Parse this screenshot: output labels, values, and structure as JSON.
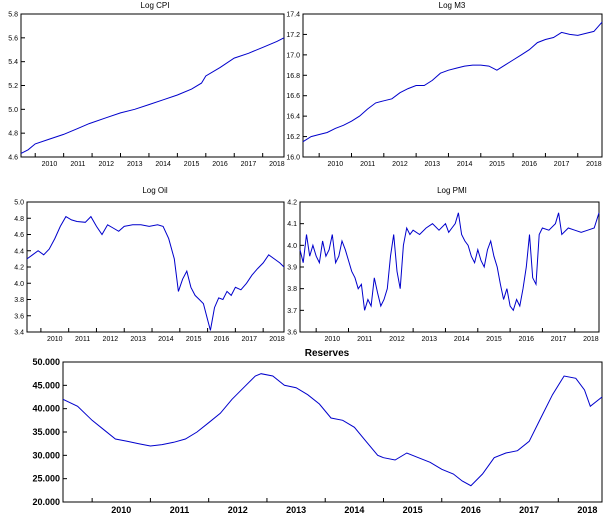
{
  "chart_data": [
    {
      "type": "line",
      "title": "Log CPI",
      "xlabel": "",
      "ylabel": "",
      "xlim": [
        2009.5,
        2018.75
      ],
      "ylim": [
        4.6,
        5.8
      ],
      "xticks": [
        "2010",
        "2011",
        "2012",
        "2013",
        "2014",
        "2015",
        "2016",
        "2017",
        "2018"
      ],
      "yticks": [
        "4.6",
        "4.8",
        "5.0",
        "5.2",
        "5.4",
        "5.6",
        "5.8"
      ],
      "ytick_values": [
        4.6,
        4.8,
        5.0,
        5.2,
        5.4,
        5.6,
        5.8
      ],
      "series": [
        {
          "x": [
            2009.5,
            2009.75,
            2010.0,
            2010.5,
            2011.0,
            2011.5,
            2011.9,
            2012.5,
            2013.0,
            2013.5,
            2014.0,
            2014.5,
            2015.0,
            2015.5,
            2015.85,
            2016.0,
            2016.5,
            2017.0,
            2017.5,
            2018.0,
            2018.5,
            2018.75
          ],
          "y": [
            4.63,
            4.66,
            4.71,
            4.75,
            4.79,
            4.84,
            4.88,
            4.93,
            4.97,
            5.0,
            5.04,
            5.08,
            5.12,
            5.17,
            5.22,
            5.28,
            5.35,
            5.43,
            5.47,
            5.52,
            5.57,
            5.6
          ]
        }
      ]
    },
    {
      "type": "line",
      "title": "Log M3",
      "xlabel": "",
      "ylabel": "",
      "xlim": [
        2009.5,
        2018.75
      ],
      "ylim": [
        16.0,
        17.4
      ],
      "xticks": [
        "2010",
        "2011",
        "2012",
        "2013",
        "2014",
        "2015",
        "2016",
        "2017",
        "2018"
      ],
      "yticks": [
        "16.0",
        "16.2",
        "16.4",
        "16.6",
        "16.8",
        "17.0",
        "17.2",
        "17.4"
      ],
      "ytick_values": [
        16.0,
        16.2,
        16.4,
        16.6,
        16.8,
        17.0,
        17.2,
        17.4
      ],
      "series": [
        {
          "x": [
            2009.5,
            2009.75,
            2010.0,
            2010.25,
            2010.5,
            2010.75,
            2011.0,
            2011.25,
            2011.5,
            2011.75,
            2012.0,
            2012.25,
            2012.5,
            2012.75,
            2013.0,
            2013.25,
            2013.5,
            2013.75,
            2014.0,
            2014.25,
            2014.5,
            2014.75,
            2015.0,
            2015.25,
            2015.5,
            2015.75,
            2016.0,
            2016.25,
            2016.5,
            2016.75,
            2017.0,
            2017.25,
            2017.5,
            2017.75,
            2018.0,
            2018.25,
            2018.5,
            2018.75
          ],
          "y": [
            16.15,
            16.2,
            16.22,
            16.24,
            16.28,
            16.31,
            16.35,
            16.4,
            16.47,
            16.53,
            16.55,
            16.57,
            16.63,
            16.67,
            16.7,
            16.7,
            16.75,
            16.82,
            16.85,
            16.87,
            16.89,
            16.9,
            16.9,
            16.89,
            16.85,
            16.9,
            16.95,
            17.0,
            17.05,
            17.12,
            17.15,
            17.17,
            17.22,
            17.2,
            17.19,
            17.21,
            17.23,
            17.32
          ]
        }
      ]
    },
    {
      "type": "line",
      "title": "Log Oil",
      "xlabel": "",
      "ylabel": "",
      "xlim": [
        2009.5,
        2018.75
      ],
      "ylim": [
        3.4,
        5.0
      ],
      "xticks": [
        "2010",
        "2011",
        "2012",
        "2013",
        "2014",
        "2015",
        "2016",
        "2017",
        "2018"
      ],
      "yticks": [
        "3.4",
        "3.6",
        "3.8",
        "4.0",
        "4.2",
        "4.4",
        "4.6",
        "4.8",
        "5.0"
      ],
      "ytick_values": [
        3.4,
        3.6,
        3.8,
        4.0,
        4.2,
        4.4,
        4.6,
        4.8,
        5.0
      ],
      "series": [
        {
          "x": [
            2009.5,
            2009.7,
            2009.9,
            2010.1,
            2010.3,
            2010.5,
            2010.7,
            2010.9,
            2011.1,
            2011.3,
            2011.6,
            2011.8,
            2012.0,
            2012.2,
            2012.4,
            2012.6,
            2012.8,
            2013.0,
            2013.3,
            2013.6,
            2013.9,
            2014.2,
            2014.4,
            2014.6,
            2014.8,
            2014.95,
            2015.1,
            2015.25,
            2015.4,
            2015.55,
            2015.7,
            2015.85,
            2016.0,
            2016.1,
            2016.25,
            2016.4,
            2016.55,
            2016.7,
            2016.85,
            2017.0,
            2017.2,
            2017.4,
            2017.6,
            2017.8,
            2018.0,
            2018.2,
            2018.4,
            2018.6,
            2018.75
          ],
          "y": [
            4.3,
            4.35,
            4.4,
            4.35,
            4.42,
            4.55,
            4.7,
            4.82,
            4.78,
            4.76,
            4.75,
            4.82,
            4.7,
            4.6,
            4.72,
            4.68,
            4.64,
            4.7,
            4.72,
            4.72,
            4.7,
            4.72,
            4.7,
            4.55,
            4.3,
            3.9,
            4.05,
            4.15,
            3.95,
            3.85,
            3.8,
            3.75,
            3.55,
            3.42,
            3.7,
            3.82,
            3.8,
            3.9,
            3.85,
            3.95,
            3.92,
            4.0,
            4.1,
            4.18,
            4.25,
            4.35,
            4.3,
            4.25,
            4.2
          ]
        }
      ]
    },
    {
      "type": "line",
      "title": "Log PMI",
      "xlabel": "",
      "ylabel": "",
      "xlim": [
        2009.5,
        2018.75
      ],
      "ylim": [
        3.6,
        4.2
      ],
      "xticks": [
        "2010",
        "2011",
        "2012",
        "2013",
        "2014",
        "2015",
        "2016",
        "2017",
        "2018"
      ],
      "yticks": [
        "3.6",
        "3.7",
        "3.8",
        "3.9",
        "4.0",
        "4.1",
        "4.2"
      ],
      "ytick_values": [
        3.6,
        3.7,
        3.8,
        3.9,
        4.0,
        4.1,
        4.2
      ],
      "series": [
        {
          "x": [
            2009.5,
            2009.6,
            2009.7,
            2009.8,
            2009.9,
            2010.0,
            2010.1,
            2010.2,
            2010.3,
            2010.4,
            2010.5,
            2010.6,
            2010.7,
            2010.8,
            2010.9,
            2011.0,
            2011.1,
            2011.2,
            2011.3,
            2011.4,
            2011.5,
            2011.6,
            2011.7,
            2011.8,
            2011.9,
            2012.0,
            2012.1,
            2012.2,
            2012.3,
            2012.4,
            2012.5,
            2012.6,
            2012.7,
            2012.8,
            2012.9,
            2013.0,
            2013.2,
            2013.4,
            2013.6,
            2013.8,
            2014.0,
            2014.1,
            2014.2,
            2014.3,
            2014.4,
            2014.5,
            2014.6,
            2014.7,
            2014.8,
            2014.9,
            2015.0,
            2015.1,
            2015.2,
            2015.3,
            2015.4,
            2015.5,
            2015.6,
            2015.7,
            2015.8,
            2015.9,
            2016.0,
            2016.1,
            2016.2,
            2016.3,
            2016.4,
            2016.5,
            2016.6,
            2016.7,
            2016.8,
            2016.9,
            2017.0,
            2017.2,
            2017.4,
            2017.5,
            2017.6,
            2017.8,
            2018.0,
            2018.2,
            2018.4,
            2018.6,
            2018.75
          ],
          "y": [
            3.98,
            3.92,
            4.05,
            3.95,
            4.0,
            3.95,
            3.92,
            4.02,
            3.95,
            3.98,
            4.05,
            3.92,
            3.95,
            4.02,
            3.98,
            3.93,
            3.88,
            3.85,
            3.8,
            3.82,
            3.7,
            3.75,
            3.72,
            3.85,
            3.78,
            3.72,
            3.75,
            3.8,
            3.95,
            4.05,
            3.88,
            3.8,
            4.0,
            4.08,
            4.05,
            4.07,
            4.05,
            4.08,
            4.1,
            4.07,
            4.1,
            4.06,
            4.08,
            4.1,
            4.15,
            4.05,
            4.02,
            4.0,
            3.95,
            3.92,
            3.98,
            3.93,
            3.9,
            3.98,
            4.02,
            3.95,
            3.9,
            3.82,
            3.75,
            3.8,
            3.72,
            3.7,
            3.75,
            3.72,
            3.8,
            3.9,
            4.05,
            3.85,
            3.82,
            4.05,
            4.08,
            4.07,
            4.1,
            4.15,
            4.05,
            4.08,
            4.07,
            4.06,
            4.07,
            4.08,
            4.15
          ]
        }
      ]
    },
    {
      "type": "line",
      "title": "Reserves",
      "xlabel": "",
      "ylabel": "",
      "xlim": [
        2009.5,
        2018.75
      ],
      "ylim": [
        20000,
        50000
      ],
      "xticks": [
        "2010",
        "2011",
        "2012",
        "2013",
        "2014",
        "2015",
        "2016",
        "2017",
        "2018"
      ],
      "yticks": [
        "20.000",
        "25.000",
        "30.000",
        "35.000",
        "40.000",
        "45.000",
        "50.000"
      ],
      "ytick_values": [
        20000,
        25000,
        30000,
        35000,
        40000,
        45000,
        50000
      ],
      "series": [
        {
          "x": [
            2009.5,
            2009.75,
            2010.0,
            2010.2,
            2010.4,
            2010.6,
            2010.8,
            2011.0,
            2011.2,
            2011.4,
            2011.6,
            2011.8,
            2012.0,
            2012.2,
            2012.4,
            2012.6,
            2012.8,
            2012.9,
            2013.1,
            2013.3,
            2013.5,
            2013.7,
            2013.9,
            2014.1,
            2014.3,
            2014.5,
            2014.7,
            2014.9,
            2015.0,
            2015.2,
            2015.4,
            2015.6,
            2015.8,
            2016.0,
            2016.2,
            2016.35,
            2016.5,
            2016.7,
            2016.9,
            2017.1,
            2017.3,
            2017.5,
            2017.7,
            2017.9,
            2018.1,
            2018.3,
            2018.45,
            2018.55,
            2018.75
          ],
          "y": [
            42000,
            40500,
            37500,
            35500,
            33500,
            33000,
            32500,
            32000,
            32300,
            32800,
            33500,
            35000,
            37000,
            39000,
            42000,
            44500,
            47000,
            47500,
            47000,
            45000,
            44500,
            43000,
            41000,
            38000,
            37500,
            36000,
            33000,
            30000,
            29500,
            29000,
            30500,
            29500,
            28500,
            27000,
            26000,
            24500,
            23500,
            26000,
            29500,
            30500,
            31000,
            33000,
            38000,
            43000,
            47000,
            46500,
            44000,
            40500,
            42500
          ]
        }
      ]
    }
  ]
}
